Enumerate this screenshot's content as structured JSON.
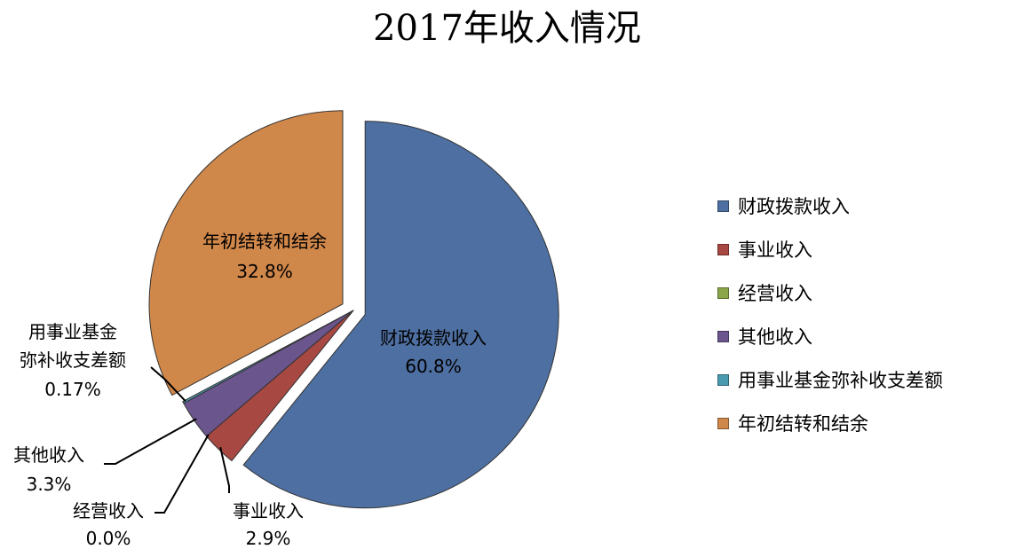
{
  "chart_data": {
    "type": "pie",
    "title": "2017年收入情况",
    "legend_position": "right",
    "slices": [
      {
        "name": "财政拨款收入",
        "value": 60.8,
        "label_name": "财政拨款收入",
        "label_value": "60.8%",
        "color": "#4E6FA1",
        "exploded": true
      },
      {
        "name": "事业收入",
        "value": 2.9,
        "label_name": "事业收入",
        "label_value": "2.9%",
        "color": "#A84842"
      },
      {
        "name": "经营收入",
        "value": 0.0,
        "label_name": "经营收入",
        "label_value": "0.0%",
        "color": "#8BA64A"
      },
      {
        "name": "其他收入",
        "value": 3.3,
        "label_name": "其他收入",
        "label_value": "3.3%",
        "color": "#6B558D"
      },
      {
        "name": "用事业基金弥补收支差额",
        "value": 0.17,
        "label_name": [
          "用事业基金",
          "弥补收支差额"
        ],
        "label_value": "0.17%",
        "color": "#4A9BB0"
      },
      {
        "name": "年初结转和结余",
        "value": 32.8,
        "label_name": "年初结转和结余",
        "label_value": "32.8%",
        "color": "#D0874A",
        "exploded": true
      }
    ]
  }
}
